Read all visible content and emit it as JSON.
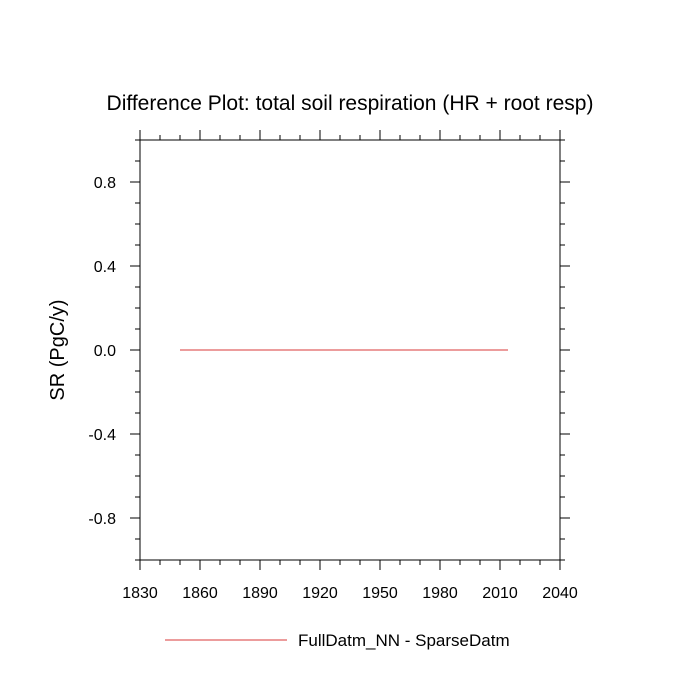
{
  "chart_data": {
    "type": "line",
    "title": "Difference Plot: total soil respiration (HR + root resp)",
    "xlabel": "",
    "ylabel": "SR  (PgC/y)",
    "xlim": [
      1830,
      2040
    ],
    "ylim": [
      -1.0,
      1.0
    ],
    "x_ticks": [
      1830,
      1860,
      1890,
      1920,
      1950,
      1980,
      2010,
      2040
    ],
    "x_tick_labels": [
      "1830",
      "1860",
      "1890",
      "1920",
      "1950",
      "1980",
      "2010",
      "2040"
    ],
    "y_ticks": [
      0.8,
      0.4,
      0.0,
      -0.4,
      -0.8
    ],
    "y_tick_labels": [
      "0.8",
      "0.4",
      "0.0",
      "-0.4",
      "-0.8"
    ],
    "grid": false,
    "legend_position": "bottom-center",
    "series": [
      {
        "name": "FullDatm_NN - SparseDatm",
        "color": "#e06060",
        "x": [
          1850,
          2014
        ],
        "y": [
          0.0,
          0.0
        ]
      }
    ]
  }
}
